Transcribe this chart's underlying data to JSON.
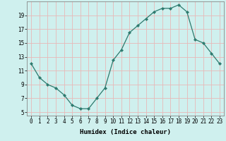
{
  "title": "",
  "xlabel": "Humidex (Indice chaleur)",
  "x": [
    0,
    1,
    2,
    3,
    4,
    5,
    6,
    7,
    8,
    9,
    10,
    11,
    12,
    13,
    14,
    15,
    16,
    17,
    18,
    19,
    20,
    21,
    22,
    23
  ],
  "y": [
    12,
    10,
    9,
    8.5,
    7.5,
    6,
    5.5,
    5.5,
    7,
    8.5,
    12.5,
    14,
    16.5,
    17.5,
    18.5,
    19.5,
    20,
    20,
    20.5,
    19.5,
    15.5,
    15,
    13.5,
    12
  ],
  "line_color": "#2d7a6e",
  "marker": "D",
  "marker_size": 2.2,
  "bg_color": "#cff0ee",
  "grid_color": "#e8b8b8",
  "ylim": [
    4.5,
    21.0
  ],
  "yticks": [
    5,
    7,
    9,
    11,
    13,
    15,
    17,
    19
  ],
  "xlim": [
    -0.5,
    23.5
  ],
  "tick_fontsize": 5.5,
  "label_fontsize": 6.5
}
